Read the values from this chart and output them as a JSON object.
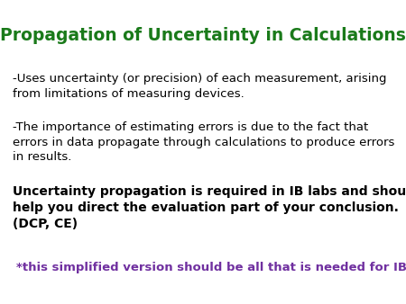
{
  "title": "Propagation of Uncertainty in Calculations",
  "title_color": "#1a7a1a",
  "title_fontsize": 13.5,
  "background_color": "#ffffff",
  "bullet1": "-Uses uncertainty (or precision) of each measurement, arising\nfrom limitations of measuring devices.",
  "bullet1_color": "#000000",
  "bullet1_fontsize": 9.5,
  "bullet2": "-The importance of estimating errors is due to the fact that\nerrors in data propagate through calculations to produce errors\nin results.",
  "bullet2_color": "#000000",
  "bullet2_fontsize": 9.5,
  "main_text": "Uncertainty propagation is required in IB labs and should\nhelp you direct the evaluation part of your conclusion.\n(DCP, CE)",
  "main_text_color": "#000000",
  "main_text_fontsize": 10.0,
  "footnote": "*this simplified version should be all that is needed for IB",
  "footnote_color": "#7030a0",
  "footnote_fontsize": 9.5
}
